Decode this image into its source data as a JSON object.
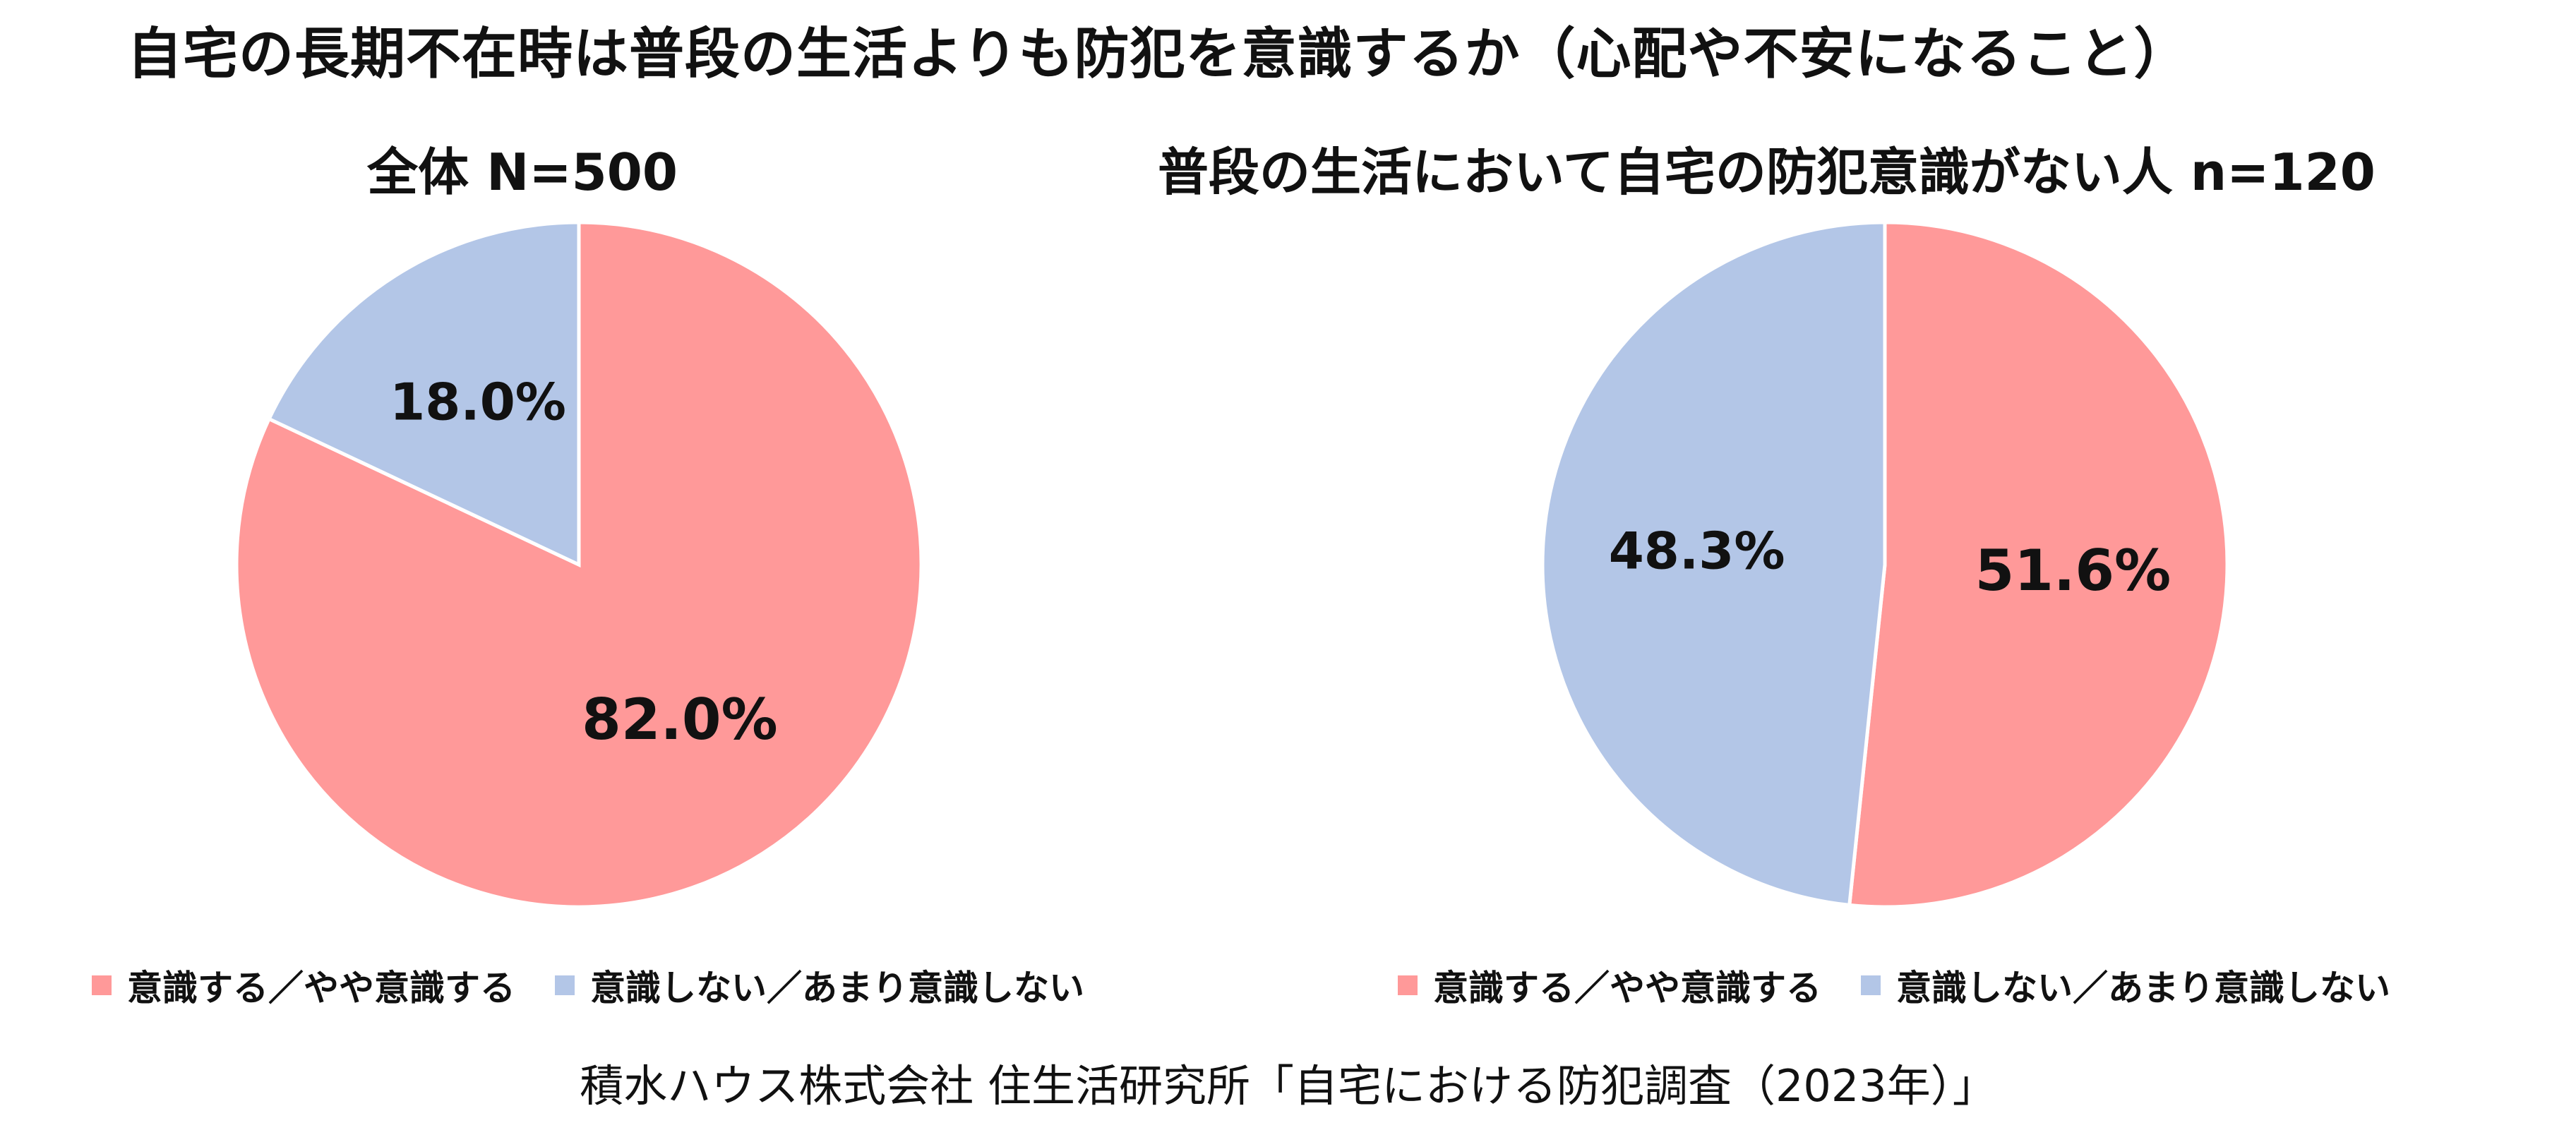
{
  "title": "自宅の長期不在時は普段の生活よりも防犯を意識するか（心配や不安になること）",
  "source": "積水ハウス株式会社 住生活研究所「自宅における防犯調査（2023年）」",
  "colors": {
    "aware": "#FF9999",
    "not_aware": "#B3C6E7",
    "edge": "#FFFFFF"
  },
  "chart_data": [
    {
      "type": "pie",
      "title": "全体 N=500",
      "categories": [
        "意識する／やや意識する",
        "意識しない／あまり意識しない"
      ],
      "values": [
        82.0,
        18.0
      ],
      "labels": [
        "82.0%",
        "18.0%"
      ],
      "legend": "bottom"
    },
    {
      "type": "pie",
      "title": "普段の生活において自宅の防犯意識がない人 n=120",
      "categories": [
        "意識する／やや意識する",
        "意識しない／あまり意識しない"
      ],
      "values": [
        51.6,
        48.3
      ],
      "labels": [
        "51.6%",
        "48.3%"
      ],
      "legend": "bottom"
    }
  ]
}
